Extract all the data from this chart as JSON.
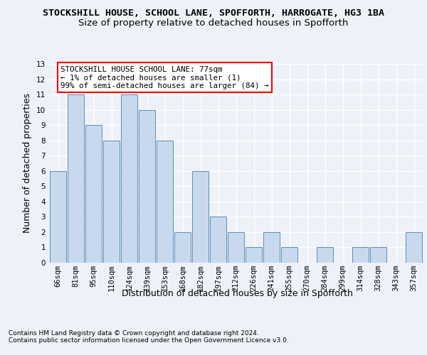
{
  "title_line1": "STOCKSHILL HOUSE, SCHOOL LANE, SPOFFORTH, HARROGATE, HG3 1BA",
  "title_line2": "Size of property relative to detached houses in Spofforth",
  "xlabel": "Distribution of detached houses by size in Spofforth",
  "ylabel": "Number of detached properties",
  "categories": [
    "66sqm",
    "81sqm",
    "95sqm",
    "110sqm",
    "124sqm",
    "139sqm",
    "153sqm",
    "168sqm",
    "182sqm",
    "197sqm",
    "212sqm",
    "226sqm",
    "241sqm",
    "255sqm",
    "270sqm",
    "284sqm",
    "299sqm",
    "314sqm",
    "328sqm",
    "343sqm",
    "357sqm"
  ],
  "values": [
    6,
    11,
    9,
    8,
    11,
    10,
    8,
    2,
    6,
    3,
    2,
    1,
    2,
    1,
    0,
    1,
    0,
    1,
    1,
    0,
    2
  ],
  "bar_color": "#c9d9ed",
  "bar_edge_color": "#5b8db8",
  "annotation_text": "STOCKSHILL HOUSE SCHOOL LANE: 77sqm\n← 1% of detached houses are smaller (1)\n99% of semi-detached houses are larger (84) →",
  "annotation_box_color": "white",
  "annotation_box_edge_color": "red",
  "ylim": [
    0,
    13
  ],
  "yticks": [
    0,
    1,
    2,
    3,
    4,
    5,
    6,
    7,
    8,
    9,
    10,
    11,
    12,
    13
  ],
  "footnote": "Contains HM Land Registry data © Crown copyright and database right 2024.\nContains public sector information licensed under the Open Government Licence v3.0.",
  "background_color": "#eef2f8",
  "grid_color": "#ffffff",
  "title_fontsize": 9.5,
  "subtitle_fontsize": 9.5,
  "axis_label_fontsize": 9,
  "tick_fontsize": 7.5,
  "annotation_fontsize": 7.8,
  "footnote_fontsize": 6.5
}
